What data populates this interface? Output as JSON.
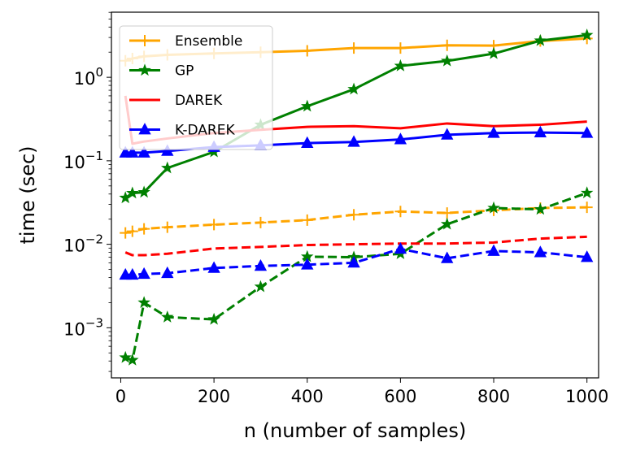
{
  "chart_data": {
    "type": "line",
    "title": "",
    "xlabel": "n (number of samples)",
    "ylabel": "time (sec)",
    "yscale": "log",
    "xlim": [
      -20,
      1025
    ],
    "ylim_log10": [
      -3.6,
      0.78
    ],
    "xticks": [
      0,
      200,
      400,
      600,
      800,
      1000
    ],
    "xtick_labels": [
      "0",
      "200",
      "400",
      "600",
      "800",
      "1000"
    ],
    "yticks": [
      0.001,
      0.01,
      0.1,
      1
    ],
    "ytick_labels": [
      {
        "base": "10",
        "exp": "−3"
      },
      {
        "base": "10",
        "exp": "−2"
      },
      {
        "base": "10",
        "exp": "−1"
      },
      {
        "base": "10",
        "exp": "0"
      }
    ],
    "legend_position": "top-left",
    "series": [
      {
        "name": "Ensemble",
        "color": "#ffa500",
        "marker": "plus",
        "style": "solid",
        "x": [
          10,
          25,
          50,
          100,
          200,
          300,
          400,
          500,
          600,
          700,
          800,
          900,
          1000
        ],
        "y": [
          1.58,
          1.68,
          1.78,
          1.86,
          1.93,
          2.0,
          2.08,
          2.24,
          2.24,
          2.42,
          2.4,
          2.72,
          2.92
        ]
      },
      {
        "name": "GP",
        "color": "#008000",
        "marker": "star",
        "style": "solid",
        "x": [
          10,
          25,
          50,
          100,
          200,
          300,
          400,
          500,
          600,
          700,
          800,
          900,
          1000
        ],
        "y": [
          0.036,
          0.041,
          0.042,
          0.082,
          0.128,
          0.27,
          0.45,
          0.72,
          1.37,
          1.57,
          1.92,
          2.75,
          3.2
        ]
      },
      {
        "name": "DAREK",
        "color": "#ff0000",
        "marker": "none",
        "style": "solid",
        "x": [
          10,
          25,
          50,
          100,
          200,
          300,
          400,
          500,
          600,
          700,
          800,
          900,
          1000
        ],
        "y": [
          0.6,
          0.16,
          0.17,
          0.185,
          0.215,
          0.235,
          0.255,
          0.26,
          0.245,
          0.28,
          0.26,
          0.27,
          0.295
        ]
      },
      {
        "name": "K-DAREK",
        "color": "#0000ff",
        "marker": "triangle",
        "style": "solid",
        "x": [
          10,
          25,
          50,
          100,
          200,
          300,
          400,
          500,
          600,
          700,
          800,
          900,
          1000
        ],
        "y": [
          0.125,
          0.125,
          0.125,
          0.131,
          0.146,
          0.153,
          0.163,
          0.168,
          0.18,
          0.205,
          0.215,
          0.218,
          0.215
        ]
      },
      {
        "name": "Ensemble (dashed)",
        "color": "#ffa500",
        "marker": "plus",
        "style": "dashed",
        "x": [
          10,
          25,
          50,
          100,
          200,
          300,
          400,
          500,
          600,
          700,
          800,
          900,
          1000
        ],
        "y": [
          0.0137,
          0.0143,
          0.0153,
          0.016,
          0.0172,
          0.0182,
          0.0195,
          0.0226,
          0.0247,
          0.0237,
          0.0255,
          0.0272,
          0.0277
        ]
      },
      {
        "name": "GP (dashed)",
        "color": "#008000",
        "marker": "star",
        "style": "dashed",
        "x": [
          10,
          25,
          50,
          100,
          200,
          300,
          400,
          500,
          600,
          700,
          800,
          900,
          1000
        ],
        "y": [
          0.00044,
          0.00041,
          0.002,
          0.00134,
          0.00126,
          0.0031,
          0.0071,
          0.007,
          0.0077,
          0.0174,
          0.0272,
          0.0262,
          0.0412
        ]
      },
      {
        "name": "DAREK (dashed)",
        "color": "#ff0000",
        "marker": "none",
        "style": "dashed",
        "x": [
          10,
          25,
          50,
          100,
          200,
          300,
          400,
          500,
          600,
          700,
          800,
          900,
          1000
        ],
        "y": [
          0.008,
          0.0074,
          0.0074,
          0.0077,
          0.0089,
          0.0093,
          0.0098,
          0.01,
          0.0102,
          0.0102,
          0.0105,
          0.0117,
          0.0123
        ]
      },
      {
        "name": "K-DAREK (dashed)",
        "color": "#0000ff",
        "marker": "triangle",
        "style": "dashed",
        "x": [
          10,
          25,
          50,
          100,
          200,
          300,
          400,
          500,
          600,
          700,
          800,
          900,
          1000
        ],
        "y": [
          0.0043,
          0.0043,
          0.0044,
          0.0045,
          0.0052,
          0.0055,
          0.0057,
          0.006,
          0.0088,
          0.0068,
          0.0083,
          0.008,
          0.007
        ]
      }
    ],
    "legend_entries": [
      {
        "label": "Ensemble",
        "color": "#ffa500",
        "marker": "plus"
      },
      {
        "label": "GP",
        "color": "#008000",
        "marker": "star"
      },
      {
        "label": "DAREK",
        "color": "#ff0000",
        "marker": "none"
      },
      {
        "label": "K-DAREK",
        "color": "#0000ff",
        "marker": "triangle"
      }
    ]
  }
}
